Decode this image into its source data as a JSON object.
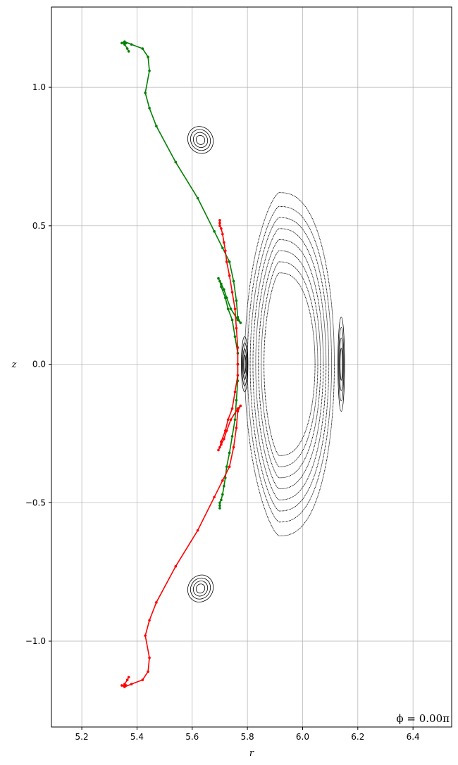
{
  "chart_data": {
    "type": "scatter",
    "title": "",
    "xlabel": "r",
    "ylabel": "z",
    "annotation": "ϕ = 0.00π",
    "xlim": [
      5.09,
      6.54
    ],
    "ylim": [
      -1.31,
      1.29
    ],
    "xticks": [
      5.2,
      5.4,
      5.6,
      5.8,
      6.0,
      6.2,
      6.4
    ],
    "xtick_labels": [
      "5.2",
      "5.4",
      "5.6",
      "5.8",
      "6.0",
      "6.2",
      "6.4"
    ],
    "yticks": [
      -1.0,
      -0.5,
      0.0,
      0.5,
      1.0
    ],
    "ytick_labels": [
      "−1.0",
      "−0.5",
      "0.0",
      "0.5",
      "1.0"
    ],
    "grid": true,
    "colors": {
      "poincare": "#000000",
      "upper_manifold": "#008000",
      "lower_manifold": "#ff0000",
      "grid": "#b0b0b0"
    },
    "flux_surfaces": {
      "center_r": 5.915,
      "center_z": 0.0,
      "shapes": [
        {
          "a_in": 0.055,
          "a_out": 0.13,
          "b": 0.33
        },
        {
          "a_in": 0.065,
          "a_out": 0.14,
          "b": 0.37
        },
        {
          "a_in": 0.075,
          "a_out": 0.15,
          "b": 0.41
        },
        {
          "a_in": 0.085,
          "a_out": 0.16,
          "b": 0.45
        },
        {
          "a_in": 0.095,
          "a_out": 0.17,
          "b": 0.49
        },
        {
          "a_in": 0.105,
          "a_out": 0.18,
          "b": 0.53
        },
        {
          "a_in": 0.115,
          "a_out": 0.19,
          "b": 0.57
        },
        {
          "a_in": 0.125,
          "a_out": 0.2,
          "b": 0.62
        }
      ]
    },
    "islands": [
      {
        "r": 5.63,
        "z": 0.81,
        "ar": 0.045,
        "az": 0.05,
        "tilt": -30
      },
      {
        "r": 5.63,
        "z": -0.81,
        "ar": 0.045,
        "az": 0.05,
        "tilt": 30
      },
      {
        "r": 5.79,
        "z": 0.0,
        "ar": 0.012,
        "az": 0.1,
        "tilt": 0
      },
      {
        "r": 6.14,
        "z": 0.0,
        "ar": 0.012,
        "az": 0.17,
        "tilt": 0
      }
    ],
    "series": [
      {
        "color": "green",
        "x": [
          5.37,
          5.365,
          5.355,
          5.36,
          5.345,
          5.355,
          5.38,
          5.42,
          5.44,
          5.445,
          5.43,
          5.445,
          5.47,
          5.54,
          5.62,
          5.68,
          5.71,
          5.735,
          5.75,
          5.76,
          5.765,
          5.775,
          5.765,
          5.74,
          5.725,
          5.715,
          5.705,
          5.695,
          5.7,
          5.705,
          5.72,
          5.73,
          5.745,
          5.755,
          5.765,
          5.765,
          5.765,
          5.76,
          5.755,
          5.745,
          5.735,
          5.725,
          5.72,
          5.715,
          5.71,
          5.705,
          5.7,
          5.7,
          5.7
        ],
        "y": [
          1.13,
          1.14,
          1.155,
          1.16,
          1.16,
          1.165,
          1.155,
          1.14,
          1.11,
          1.06,
          0.98,
          0.925,
          0.86,
          0.73,
          0.6,
          0.48,
          0.42,
          0.37,
          0.3,
          0.23,
          0.17,
          0.15,
          0.16,
          0.2,
          0.24,
          0.27,
          0.29,
          0.31,
          0.3,
          0.28,
          0.24,
          0.2,
          0.16,
          0.1,
          0.04,
          0.0,
          -0.06,
          -0.13,
          -0.2,
          -0.26,
          -0.32,
          -0.37,
          -0.41,
          -0.44,
          -0.47,
          -0.49,
          -0.5,
          -0.51,
          -0.52
        ]
      },
      {
        "color": "red",
        "x": [
          5.37,
          5.365,
          5.355,
          5.36,
          5.345,
          5.355,
          5.38,
          5.42,
          5.44,
          5.445,
          5.43,
          5.445,
          5.47,
          5.54,
          5.62,
          5.68,
          5.71,
          5.735,
          5.75,
          5.76,
          5.765,
          5.775,
          5.765,
          5.74,
          5.725,
          5.715,
          5.705,
          5.695,
          5.7,
          5.705,
          5.72,
          5.73,
          5.745,
          5.755,
          5.765,
          5.765,
          5.765,
          5.76,
          5.755,
          5.745,
          5.735,
          5.725,
          5.72,
          5.715,
          5.71,
          5.705,
          5.7,
          5.7,
          5.7
        ],
        "y": [
          -1.13,
          -1.14,
          -1.155,
          -1.16,
          -1.16,
          -1.165,
          -1.155,
          -1.14,
          -1.11,
          -1.06,
          -0.98,
          -0.925,
          -0.86,
          -0.73,
          -0.6,
          -0.48,
          -0.42,
          -0.37,
          -0.3,
          -0.23,
          -0.17,
          -0.15,
          -0.16,
          -0.2,
          -0.24,
          -0.27,
          -0.29,
          -0.31,
          -0.3,
          -0.28,
          -0.24,
          -0.2,
          -0.16,
          -0.1,
          -0.04,
          0.0,
          0.06,
          0.13,
          0.2,
          0.26,
          0.32,
          0.37,
          0.41,
          0.44,
          0.47,
          0.49,
          0.5,
          0.51,
          0.52
        ]
      }
    ]
  }
}
